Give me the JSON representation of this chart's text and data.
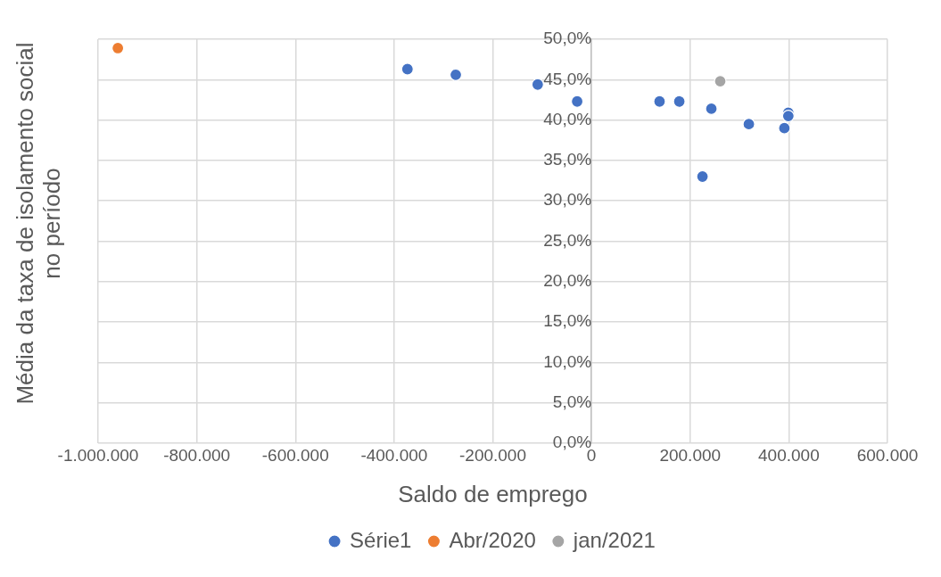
{
  "chart_data": {
    "type": "scatter",
    "xlabel": "Saldo de emprego",
    "ylabel": "Média da taxa de isolamento social\nno período",
    "xlim": [
      -1000000,
      600000
    ],
    "xticks": [
      {
        "value": -1000000,
        "label": "-1.000.000"
      },
      {
        "value": -800000,
        "label": "-800.000"
      },
      {
        "value": -600000,
        "label": "-600.000"
      },
      {
        "value": -400000,
        "label": "-400.000"
      },
      {
        "value": -200000,
        "label": "-200.000"
      },
      {
        "value": 0,
        "label": "0"
      },
      {
        "value": 200000,
        "label": "200.000"
      },
      {
        "value": 400000,
        "label": "400.000"
      },
      {
        "value": 600000,
        "label": "600.000"
      }
    ],
    "ylim": [
      0,
      50
    ],
    "yticks": [
      {
        "value": 0,
        "label": "0,0%"
      },
      {
        "value": 5,
        "label": "5,0%"
      },
      {
        "value": 10,
        "label": "10,0%"
      },
      {
        "value": 15,
        "label": "15,0%"
      },
      {
        "value": 20,
        "label": "20,0%"
      },
      {
        "value": 25,
        "label": "25,0%"
      },
      {
        "value": 30,
        "label": "30,0%"
      },
      {
        "value": 35,
        "label": "35,0%"
      },
      {
        "value": 40,
        "label": "40,0%"
      },
      {
        "value": 45,
        "label": "45,0%"
      },
      {
        "value": 50,
        "label": "50,0%"
      }
    ],
    "grid": true,
    "legend": "bottom",
    "marker": "circle",
    "series": [
      {
        "name": "Série1",
        "color": "#4472c4",
        "x": [
          -373000,
          -275000,
          -109000,
          -29000,
          138000,
          178000,
          243000,
          225000,
          319000,
          391000,
          399000,
          399000
        ],
        "values": [
          46.3,
          45.6,
          44.4,
          42.3,
          42.3,
          42.3,
          41.4,
          33.0,
          39.5,
          39.0,
          40.9,
          40.5
        ]
      },
      {
        "name": "Abr/2020",
        "color": "#ed7d31",
        "x": [
          -960000
        ],
        "values": [
          48.9
        ]
      },
      {
        "name": "jan/2021",
        "color": "#a5a5a5",
        "x": [
          261000
        ],
        "values": [
          44.8
        ]
      }
    ]
  }
}
